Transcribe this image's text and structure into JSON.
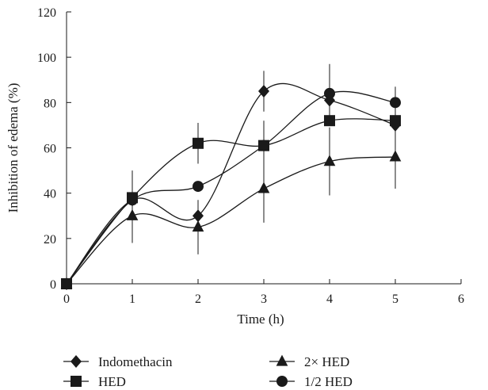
{
  "chart_data": {
    "type": "line",
    "xlabel": "Time (h)",
    "ylabel": "Inhibition of edema (%)",
    "xlim": [
      0,
      6
    ],
    "ylim": [
      0,
      120
    ],
    "xticks": [
      0,
      1,
      2,
      3,
      4,
      5,
      6
    ],
    "yticks": [
      0,
      20,
      40,
      60,
      80,
      100,
      120
    ],
    "grid": false,
    "legend_position": "bottom",
    "line_style": "smoothed",
    "x": [
      0,
      1,
      2,
      3,
      4,
      5
    ],
    "series": [
      {
        "name": "Indomethacin",
        "marker": "diamond",
        "values": [
          0,
          37,
          30,
          85,
          81,
          70
        ],
        "error": [
          0,
          0,
          0,
          9,
          0,
          0
        ]
      },
      {
        "name": "2× HED",
        "marker": "triangle",
        "values": [
          0,
          30,
          25,
          42,
          54,
          56
        ],
        "error": [
          0,
          12,
          12,
          15,
          15,
          14
        ]
      },
      {
        "name": "HED",
        "marker": "square",
        "values": [
          0,
          38,
          62,
          61,
          72,
          72
        ],
        "error": [
          0,
          12,
          9,
          11,
          0,
          0
        ]
      },
      {
        "name": "1/2 HED",
        "marker": "circle",
        "values": [
          0,
          37,
          43,
          61,
          84,
          80
        ],
        "error": [
          0,
          0,
          0,
          0,
          13,
          7
        ]
      }
    ]
  }
}
